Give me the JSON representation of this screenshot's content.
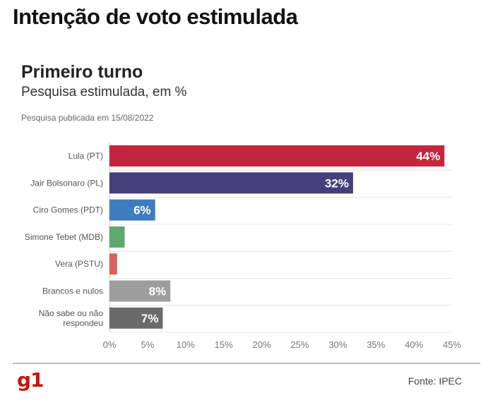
{
  "headline": "Intenção de voto estimulada",
  "published_note": "Pesquisa publicada em 15/08/2022",
  "source": "Fonte: IPEC",
  "logo": "g1",
  "colors": {
    "lula": "#c4253f",
    "bolsonaro": "#44407a",
    "ciro": "#3e7cbf",
    "tebet": "#5ea96e",
    "vera": "#d96161",
    "brancos": "#9d9d9d",
    "nao_sabe": "#6a6a6a",
    "grid": "#e6e6e6",
    "axis_text": "#777777"
  },
  "chart_data": {
    "type": "bar",
    "orientation": "horizontal",
    "title": "Primeiro turno",
    "subtitle": "Pesquisa estimulada, em %",
    "categories": [
      "Lula (PT)",
      "Jair Bolsonaro (PL)",
      "Ciro Gomes (PDT)",
      "Simone Tebet (MDB)",
      "Vera (PSTU)",
      "Brancos e nulos",
      "Não sabe ou não respondeu"
    ],
    "category_lines": [
      [
        "Lula (PT)"
      ],
      [
        "Jair Bolsonaro (PL)"
      ],
      [
        "Ciro Gomes (PDT)"
      ],
      [
        "Simone Tebet (MDB)"
      ],
      [
        "Vera (PSTU)"
      ],
      [
        "Brancos e nulos"
      ],
      [
        "Não sabe ou não",
        "respondeu"
      ]
    ],
    "values": [
      44,
      32,
      6,
      2,
      1,
      8,
      7
    ],
    "data_labels": [
      "44%",
      "32%",
      "6%",
      "",
      "",
      "8%",
      "7%"
    ],
    "bar_color_keys": [
      "lula",
      "bolsonaro",
      "ciro",
      "tebet",
      "vera",
      "brancos",
      "nao_sabe"
    ],
    "xlim": [
      0,
      45
    ],
    "xticks": [
      0,
      5,
      10,
      15,
      20,
      25,
      30,
      35,
      40,
      45
    ],
    "xtick_labels": [
      "0%",
      "5%",
      "10%",
      "15%",
      "20%",
      "25%",
      "30%",
      "35%",
      "40%",
      "45%"
    ],
    "grid": true
  }
}
